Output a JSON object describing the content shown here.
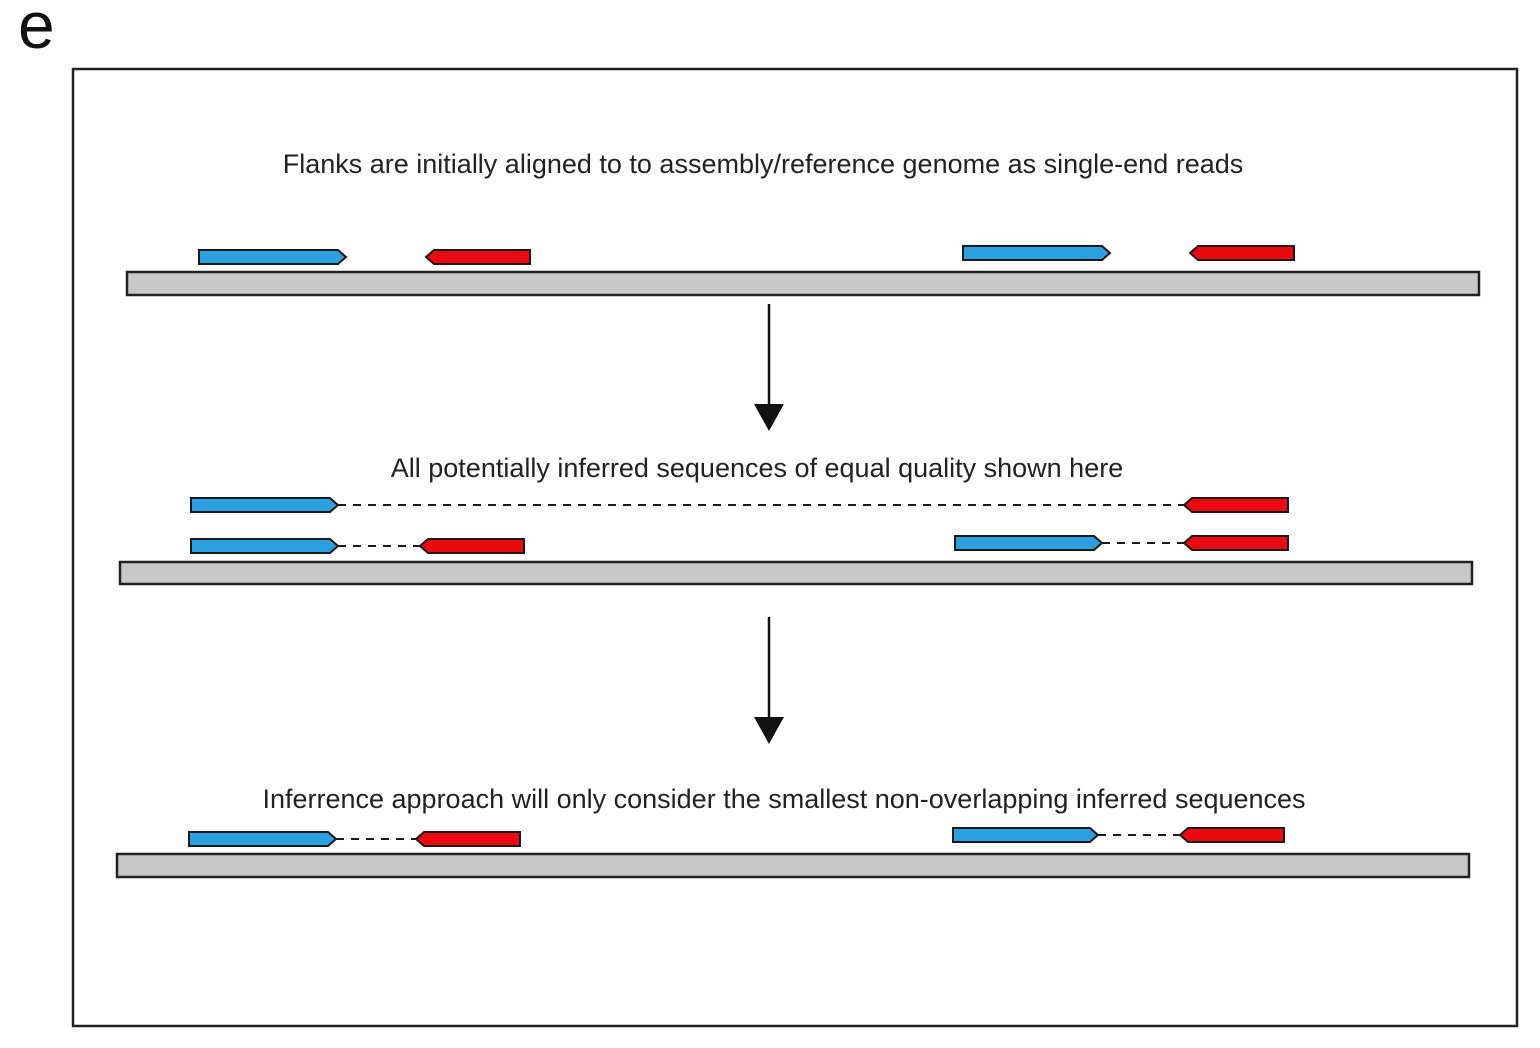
{
  "panel_label": "e",
  "steps": [
    {
      "caption": "Flanks are initially aligned to to assembly/reference genome as single-end reads"
    },
    {
      "caption": "All potentially inferred sequences of equal quality shown here"
    },
    {
      "caption": "Inferrence approach will only consider the smallest non-overlapping inferred sequences"
    }
  ],
  "colors": {
    "forward_flank": "#2b9fe0",
    "reverse_flank": "#ea0a10",
    "reference_bar": "#c8c8c8",
    "outline": "#1a1a1a"
  },
  "icons": {
    "forward_flank": "right-pointing-read-arrow",
    "reverse_flank": "left-pointing-read-arrow",
    "flow": "down-arrow"
  }
}
